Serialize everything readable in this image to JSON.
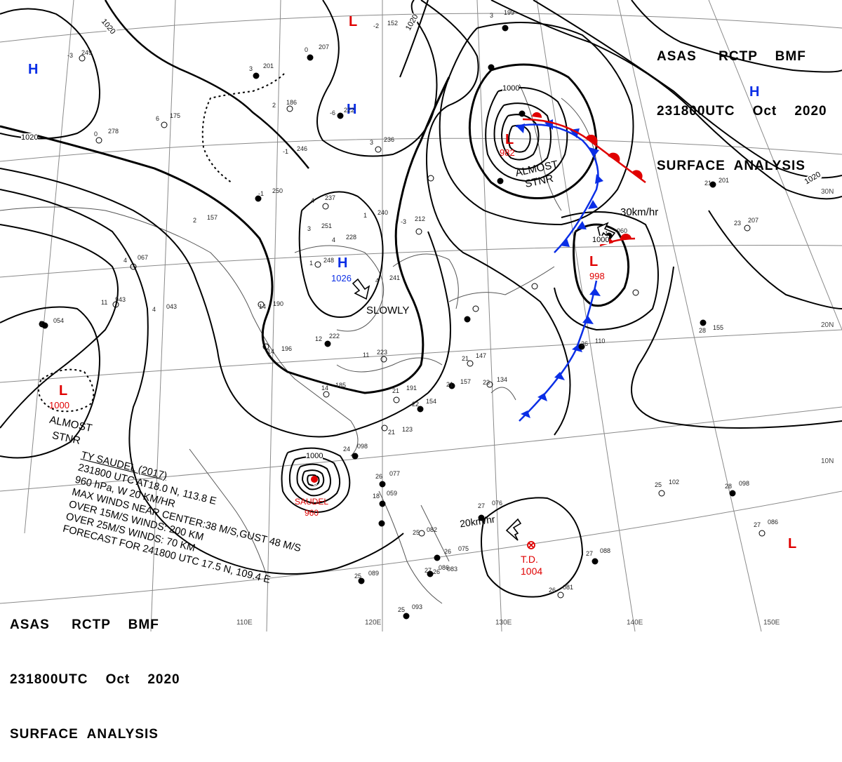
{
  "header": {
    "line1": "ASAS     RCTP    BMF",
    "line2": "231800UTC    Oct    2020",
    "line3": "SURFACE  ANALYSIS"
  },
  "footer": {
    "line1": "ASAS     RCTP    BMF",
    "line2": "231800UTC    Oct    2020",
    "line3": "SURFACE  ANALYSIS"
  },
  "colors": {
    "high": "#0a2ee6",
    "low": "#e00000",
    "cold_front": "#0a2ee6",
    "warm_front": "#e00000",
    "isobar": "#000000",
    "grid": "#888888"
  },
  "grid_labels": {
    "lon": [
      "110E",
      "120E",
      "130E",
      "140E",
      "150E"
    ],
    "lat": [
      "30N",
      "20N",
      "10N"
    ]
  },
  "isobar_labels": [
    "1020",
    "1020",
    "1020",
    "1000",
    "1020",
    "1000",
    "1000"
  ],
  "pressure_systems": [
    {
      "type": "H",
      "value": ""
    },
    {
      "type": "L",
      "value": ""
    },
    {
      "type": "H",
      "value": ""
    },
    {
      "type": "H",
      "value": ""
    },
    {
      "type": "L",
      "value": "982"
    },
    {
      "type": "H",
      "value": "1026"
    },
    {
      "type": "L",
      "value": "998"
    },
    {
      "type": "L",
      "value": "1000"
    },
    {
      "type": "L",
      "value": ""
    }
  ],
  "annotations": {
    "almost_stnr_1": "ALMOST",
    "almost_stnr_1b": "STNR",
    "almost_stnr_2": "ALMOST",
    "almost_stnr_2b": "STNR",
    "slowly": "SLOWLY",
    "speed_low998": "30km/hr",
    "speed_td": "20km/hr",
    "td_label": "T.D.",
    "td_value": "1004",
    "typhoon_name": "SAUDEL",
    "typhoon_value": "960"
  },
  "typhoon_warning": [
    "TY  SAUDEL  (2017)",
    "231800 UTC  AT18.0 N, 113.8 E",
    "960 hPa, W  20 KM/HR",
    "MAX WINDS NEAR CENTER:38 M/S,GUST 48 M/S",
    "OVER 15M/S WINDS: 200 KM",
    "OVER 25M/S WINDS: 70 KM",
    "FORECAST FOR 241800 UTC 17.5 N, 109.4 E"
  ],
  "stations": [
    {
      "p": "249",
      "t": "-3"
    },
    {
      "p": "207",
      "t": "0"
    },
    {
      "p": "201",
      "t": "3"
    },
    {
      "p": "186",
      "t": "2"
    },
    {
      "p": "222",
      "t": "-6"
    },
    {
      "p": "175",
      "t": "6"
    },
    {
      "p": "278",
      "t": "0"
    },
    {
      "p": "246",
      "t": "-1"
    },
    {
      "p": "236",
      "t": "3"
    },
    {
      "p": "250",
      "t": "-1"
    },
    {
      "p": "237",
      "t": "4"
    },
    {
      "p": "157",
      "t": "2"
    },
    {
      "p": "251",
      "t": "3"
    },
    {
      "p": "228",
      "t": "4"
    },
    {
      "p": "240",
      "t": "1"
    },
    {
      "p": "212",
      "t": "-3"
    },
    {
      "p": "248",
      "t": "1"
    },
    {
      "p": "241",
      "t": "4"
    },
    {
      "p": "067",
      "t": "4"
    },
    {
      "p": "943",
      "t": "11"
    },
    {
      "p": "043",
      "t": "4"
    },
    {
      "p": "054",
      "t": "2"
    },
    {
      "p": "190",
      "t": "14"
    },
    {
      "p": "222",
      "t": "12"
    },
    {
      "p": "196",
      "t": "14"
    },
    {
      "p": "223",
      "t": "11"
    },
    {
      "p": "185",
      "t": "14"
    },
    {
      "p": "191",
      "t": "21"
    },
    {
      "p": "154",
      "t": "22"
    },
    {
      "p": "123",
      "t": "21"
    },
    {
      "p": "157",
      "t": "21"
    },
    {
      "p": "134",
      "t": "23"
    },
    {
      "p": "147",
      "t": "21"
    },
    {
      "p": "110",
      "t": "26"
    },
    {
      "p": "155",
      "t": "28"
    },
    {
      "p": "201",
      "t": "21"
    },
    {
      "p": "207",
      "t": "23"
    },
    {
      "p": "060",
      "t": "-1"
    },
    {
      "p": "098",
      "t": "24"
    },
    {
      "p": "077",
      "t": "26"
    },
    {
      "p": "059",
      "t": "18"
    },
    {
      "p": "082",
      "t": "25"
    },
    {
      "p": "075",
      "t": "26"
    },
    {
      "p": "086",
      "t": "27"
    },
    {
      "p": "088",
      "t": "27"
    },
    {
      "p": "102",
      "t": "25"
    },
    {
      "p": "098",
      "t": "28"
    },
    {
      "p": "086",
      "t": "27"
    },
    {
      "p": "081",
      "t": "26"
    },
    {
      "p": "089",
      "t": "25"
    },
    {
      "p": "093",
      "t": "25"
    },
    {
      "p": "083",
      "t": "26"
    },
    {
      "p": "076",
      "t": "27"
    },
    {
      "p": "152",
      "t": "-2"
    },
    {
      "p": "199",
      "t": "3"
    }
  ]
}
